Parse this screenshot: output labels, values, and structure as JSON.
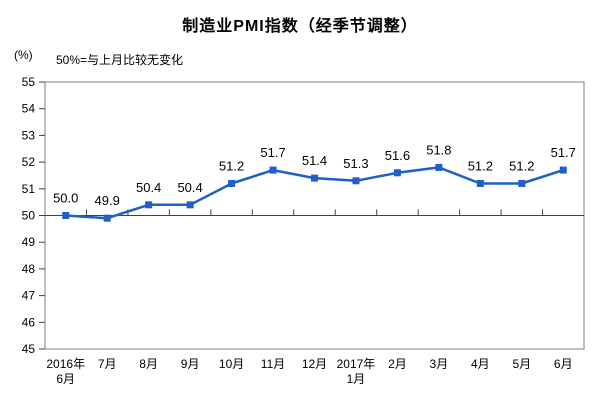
{
  "chart_data": {
    "type": "line",
    "title": "制造业PMI指数（经季节调整）",
    "subtitle": "50%=与上月比较无变化",
    "ylabel": "(%)",
    "ylim": [
      45,
      55
    ],
    "y_tick_step": 1,
    "reference_line": 50,
    "grid": false,
    "legend_position": "none",
    "categories": [
      "2016年6月",
      "7月",
      "8月",
      "9月",
      "10月",
      "11月",
      "12月",
      "2017年1月",
      "2月",
      "3月",
      "4月",
      "5月",
      "6月"
    ],
    "category_label_lines": [
      [
        "2016年",
        "6月"
      ],
      [
        "7月"
      ],
      [
        "8月"
      ],
      [
        "9月"
      ],
      [
        "10月"
      ],
      [
        "11月"
      ],
      [
        "12月"
      ],
      [
        "2017年",
        "1月"
      ],
      [
        "2月"
      ],
      [
        "3月"
      ],
      [
        "4月"
      ],
      [
        "5月"
      ],
      [
        "6月"
      ]
    ],
    "series": [
      {
        "name": "制造业PMI指数",
        "values": [
          50.0,
          49.9,
          50.4,
          50.4,
          51.2,
          51.7,
          51.4,
          51.3,
          51.6,
          51.8,
          51.2,
          51.2,
          51.7
        ],
        "point_labels": [
          "50.0",
          "49.9",
          "50.4",
          "50.4",
          "51.2",
          "51.7",
          "51.4",
          "51.3",
          "51.6",
          "51.8",
          "51.2",
          "51.2",
          "51.7"
        ]
      }
    ],
    "colors": {
      "line": "#1e5fc8",
      "marker": "#1e5fc8",
      "frame": "#7f7f7f",
      "axis": "#404040",
      "text": "#000000",
      "background": "#ffffff"
    }
  }
}
